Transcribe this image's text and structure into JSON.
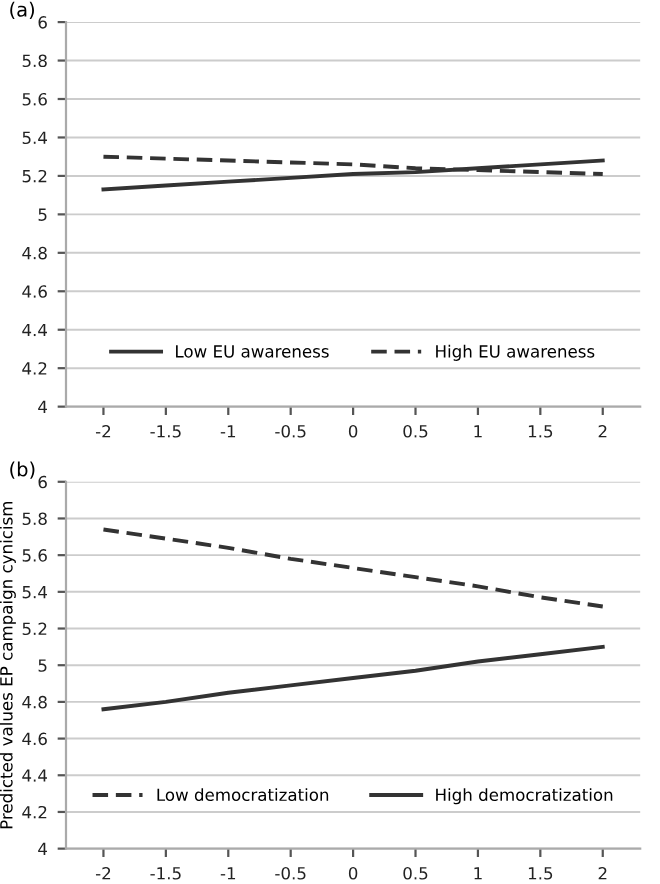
{
  "chart_data": [
    {
      "type": "line",
      "title": "(a)",
      "categories": [
        "-2",
        "-1.5",
        "-1",
        "-0.5",
        "0",
        "0.5",
        "1",
        "1.5",
        "2"
      ],
      "series": [
        {
          "name": "Low EU awareness",
          "color": "#333333",
          "line_style": "solid",
          "values": [
            5.13,
            5.15,
            5.17,
            5.19,
            5.21,
            5.22,
            5.24,
            5.26,
            5.28
          ]
        },
        {
          "name": "High EU awareness",
          "color": "#333333",
          "line_style": "dashed",
          "values": [
            5.3,
            5.29,
            5.28,
            5.27,
            5.26,
            5.24,
            5.23,
            5.22,
            5.21
          ]
        }
      ],
      "ylim": [
        4,
        6
      ],
      "yticks": [
        4,
        4.2,
        4.4,
        4.6,
        4.8,
        5,
        5.2,
        5.4,
        5.6,
        5.8,
        6
      ],
      "grid": "y",
      "legend": "bottom",
      "marker": "none"
    },
    {
      "type": "line",
      "title": "(b)",
      "ylabel": "Predicted values EP campaign cynicism",
      "categories": [
        "-2",
        "-1.5",
        "-1",
        "-0.5",
        "0",
        "0.5",
        "1",
        "1.5",
        "2"
      ],
      "series": [
        {
          "name": "Low democratization",
          "color": "#333333",
          "line_style": "dashed",
          "values": [
            5.74,
            5.69,
            5.64,
            5.58,
            5.53,
            5.48,
            5.43,
            5.37,
            5.32
          ]
        },
        {
          "name": "High democratization",
          "color": "#333333",
          "line_style": "solid",
          "values": [
            4.76,
            4.8,
            4.85,
            4.89,
            4.93,
            4.97,
            5.02,
            5.06,
            5.1
          ]
        }
      ],
      "ylim": [
        4,
        6
      ],
      "yticks": [
        4,
        4.2,
        4.4,
        4.6,
        4.8,
        5,
        5.2,
        5.4,
        5.6,
        5.8,
        6
      ],
      "grid": "y",
      "legend": "bottom",
      "marker": "none"
    }
  ]
}
